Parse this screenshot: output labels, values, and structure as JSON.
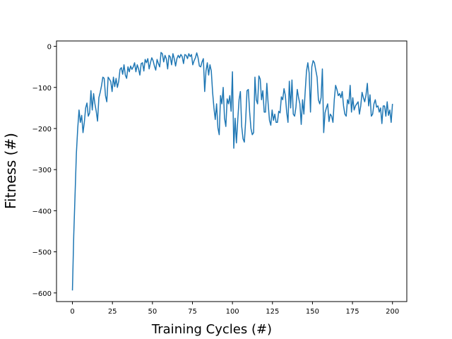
{
  "chart_data": {
    "type": "line",
    "title": "",
    "xlabel": "Training Cycles (#)",
    "ylabel": "Fitness (#)",
    "xlim": [
      -9.95,
      208.95
    ],
    "ylim": [
      -621,
      13
    ],
    "xticks": [
      0,
      25,
      50,
      75,
      100,
      125,
      150,
      175,
      200
    ],
    "yticks": [
      -600,
      -500,
      -400,
      -300,
      -200,
      -100,
      0
    ],
    "xtick_labels": [
      "0",
      "25",
      "50",
      "75",
      "100",
      "125",
      "150",
      "175",
      "200"
    ],
    "ytick_labels": [
      "−600",
      "−500",
      "−400",
      "−300",
      "−200",
      "−100",
      "0"
    ],
    "grid": false,
    "legend": false,
    "series": [
      {
        "color": "#1f77b4",
        "y": [
          -594,
          -460,
          -360,
          -260,
          -200,
          -155,
          -185,
          -168,
          -210,
          -185,
          -150,
          -138,
          -170,
          -162,
          -108,
          -155,
          -115,
          -140,
          -158,
          -182,
          -125,
          -112,
          -96,
          -75,
          -78,
          -120,
          -135,
          -75,
          -80,
          -86,
          -110,
          -75,
          -98,
          -78,
          -100,
          -85,
          -56,
          -52,
          -68,
          -45,
          -70,
          -78,
          -50,
          -62,
          -48,
          -56,
          -50,
          -40,
          -62,
          -45,
          -55,
          -70,
          -42,
          -40,
          -60,
          -32,
          -40,
          -30,
          -55,
          -40,
          -28,
          -35,
          -48,
          -58,
          -32,
          -42,
          -50,
          -15,
          -18,
          -38,
          -22,
          -30,
          -55,
          -22,
          -26,
          -45,
          -18,
          -30,
          -48,
          -30,
          -22,
          -28,
          -20,
          -25,
          -42,
          -20,
          -22,
          -30,
          -18,
          -25,
          -20,
          -45,
          -35,
          -28,
          -16,
          -28,
          -48,
          -50,
          -38,
          -30,
          -110,
          -60,
          -40,
          -70,
          -45,
          -60,
          -112,
          -150,
          -178,
          -140,
          -198,
          -215,
          -120,
          -140,
          -100,
          -175,
          -195,
          -128,
          -140,
          -120,
          -158,
          -62,
          -248,
          -175,
          -235,
          -180,
          -130,
          -110,
          -195,
          -225,
          -233,
          -180,
          -108,
          -105,
          -160,
          -200,
          -215,
          -210,
          -75,
          -130,
          -140,
          -72,
          -80,
          -130,
          -108,
          -160,
          -160,
          -90,
          -140,
          -180,
          -192,
          -155,
          -180,
          -165,
          -185,
          -185,
          -158,
          -162,
          -123,
          -130,
          -103,
          -120,
          -160,
          -185,
          -85,
          -150,
          -82,
          -165,
          -170,
          -148,
          -105,
          -125,
          -140,
          -190,
          -130,
          -165,
          -110,
          -60,
          -40,
          -65,
          -160,
          -50,
          -35,
          -40,
          -58,
          -75,
          -130,
          -140,
          -125,
          -55,
          -210,
          -162,
          -150,
          -140,
          -183,
          -165,
          -170,
          -185,
          -130,
          -95,
          -105,
          -120,
          -115,
          -125,
          -110,
          -145,
          -165,
          -170,
          -130,
          -140,
          -95,
          -160,
          -125,
          -155,
          -145,
          -140,
          -135,
          -165,
          -145,
          -112,
          -125,
          -135,
          -118,
          -90,
          -145,
          -118,
          -170,
          -165,
          -140,
          -130,
          -148,
          -145,
          -160,
          -150,
          -188,
          -145,
          -145,
          -170,
          -135,
          -168,
          -155,
          -185,
          -140
        ]
      }
    ]
  }
}
